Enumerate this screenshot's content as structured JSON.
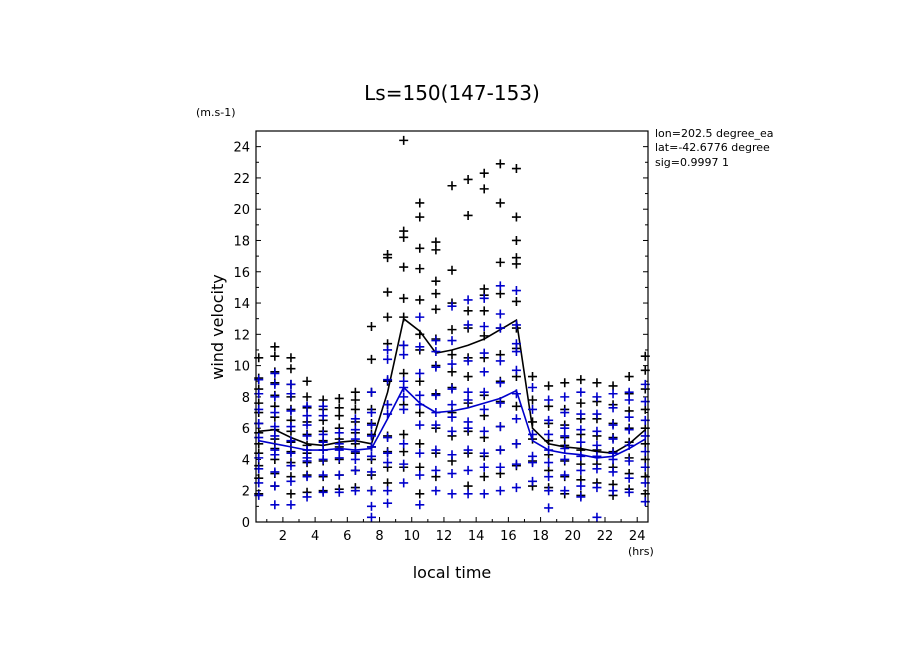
{
  "chart_data": {
    "type": "scatter",
    "title": "Ls=150(147-153)",
    "xlabel": "local time",
    "ylabel": "wind velocity",
    "x_unit": "(hrs)",
    "y_unit": "(m.s-1)",
    "xlim": [
      0.33,
      24.67
    ],
    "ylim": [
      0,
      25
    ],
    "xticks": [
      2,
      4,
      6,
      8,
      10,
      12,
      14,
      16,
      18,
      20,
      22,
      24
    ],
    "yticks": [
      0,
      2,
      4,
      6,
      8,
      10,
      12,
      14,
      16,
      18,
      20,
      22,
      24
    ],
    "annotations": [
      "lon=202.5 degree_ea",
      "lat=-42.6776 degree",
      "sig=0.9997 1"
    ],
    "colors": {
      "series1": "#000000",
      "series2": "#0000cc"
    },
    "series": [
      {
        "marker": "plus",
        "color": "#000000",
        "mean_line": {
          "x": [
            0.5,
            1.5,
            2.5,
            3.5,
            4.5,
            5.5,
            6.5,
            7.5,
            8.5,
            9.5,
            10.5,
            11.5,
            12.5,
            13.5,
            14.5,
            15.5,
            16.5,
            17.5,
            18.5,
            19.5,
            20.5,
            21.5,
            22.5,
            23.5,
            24.5
          ],
          "y": [
            5.8,
            5.9,
            5.4,
            5.0,
            4.9,
            5.1,
            5.2,
            5.0,
            8.3,
            13.0,
            12.2,
            10.8,
            11.0,
            11.3,
            11.7,
            12.3,
            12.9,
            6.0,
            5.0,
            4.8,
            4.7,
            4.5,
            4.4,
            5.0,
            5.9
          ]
        },
        "points": [
          [
            0.5,
            [
              1.8,
              2.8,
              3.6,
              4.4,
              5.0,
              5.7,
              6.3,
              7.0,
              7.6,
              8.5,
              9.2,
              10.5
            ]
          ],
          [
            1.5,
            [
              2.3,
              3.1,
              4.0,
              4.7,
              5.3,
              5.9,
              6.7,
              7.4,
              8.1,
              8.9,
              9.6,
              10.6,
              11.2
            ]
          ],
          [
            2.5,
            [
              1.8,
              2.9,
              3.8,
              4.5,
              5.1,
              5.8,
              6.5,
              7.2,
              8.0,
              8.8,
              9.8,
              10.5
            ]
          ],
          [
            3.5,
            [
              1.9,
              3.0,
              3.8,
              4.4,
              4.9,
              5.6,
              6.4,
              7.3,
              8.0,
              9.0
            ]
          ],
          [
            4.5,
            [
              2.0,
              2.9,
              3.9,
              4.6,
              5.2,
              5.8,
              6.5,
              7.2,
              7.8
            ]
          ],
          [
            5.5,
            [
              2.1,
              3.0,
              4.0,
              4.8,
              5.3,
              6.0,
              6.8,
              7.3,
              7.9
            ]
          ],
          [
            6.5,
            [
              2.2,
              3.3,
              4.4,
              5.0,
              5.7,
              6.4,
              7.2,
              7.8,
              8.3
            ]
          ],
          [
            7.5,
            [
              2.0,
              3.0,
              4.0,
              4.8,
              5.6,
              6.3,
              7.2,
              8.3,
              10.4,
              12.5
            ]
          ],
          [
            8.5,
            [
              2.5,
              3.5,
              4.5,
              5.5,
              7.5,
              9.0,
              11.4,
              13.1,
              14.7,
              16.9,
              17.1
            ]
          ],
          [
            9.5,
            [
              3.5,
              4.5,
              5.6,
              7.5,
              9.5,
              11.3,
              13.1,
              14.3,
              16.3,
              18.2,
              18.6,
              24.4
            ]
          ],
          [
            10.5,
            [
              1.8,
              3.5,
              5.0,
              7.0,
              9.0,
              11.0,
              12.0,
              14.2,
              16.2,
              17.5,
              19.5,
              20.4
            ]
          ],
          [
            11.5,
            [
              2.9,
              4.4,
              6.0,
              8.2,
              10.0,
              11.7,
              13.6,
              14.6,
              15.4,
              17.4,
              17.9
            ]
          ],
          [
            12.5,
            [
              3.9,
              5.5,
              7.0,
              8.6,
              9.6,
              10.7,
              12.3,
              14.0,
              16.1,
              21.5
            ]
          ],
          [
            13.5,
            [
              2.3,
              4.4,
              5.8,
              7.6,
              9.3,
              10.5,
              12.4,
              13.5,
              19.6,
              21.9
            ]
          ],
          [
            14.5,
            [
              2.9,
              4.2,
              5.4,
              6.8,
              8.1,
              10.5,
              11.9,
              13.5,
              14.5,
              14.9,
              21.3,
              22.3
            ]
          ],
          [
            15.5,
            [
              3.1,
              4.6,
              6.1,
              7.7,
              9.0,
              10.7,
              12.4,
              14.6,
              16.6,
              20.4,
              22.9
            ]
          ],
          [
            16.5,
            [
              3.6,
              5.0,
              7.4,
              9.3,
              11.1,
              12.4,
              14.1,
              16.5,
              16.9,
              18.0,
              19.5,
              22.6
            ]
          ],
          [
            17.5,
            [
              2.3,
              3.9,
              5.3,
              6.4,
              7.8,
              9.3
            ]
          ],
          [
            18.5,
            [
              2.2,
              3.3,
              4.3,
              5.2,
              6.3,
              7.4,
              8.7
            ]
          ],
          [
            19.5,
            [
              1.8,
              2.9,
              3.9,
              4.9,
              5.4,
              6.2,
              7.2,
              8.9
            ]
          ],
          [
            20.5,
            [
              1.7,
              2.7,
              3.7,
              4.6,
              5.6,
              6.6,
              7.6,
              9.1
            ]
          ],
          [
            21.5,
            [
              2.5,
              3.7,
              4.6,
              5.5,
              6.6,
              7.7,
              8.9
            ]
          ],
          [
            22.5,
            [
              1.7,
              2.4,
              3.5,
              4.5,
              5.4,
              6.3,
              7.5,
              8.7
            ]
          ],
          [
            23.5,
            [
              2.1,
              3.1,
              4.1,
              5.1,
              6.0,
              7.1,
              8.2,
              9.3
            ]
          ],
          [
            24.5,
            [
              1.8,
              2.9,
              4.0,
              5.0,
              6.0,
              7.2,
              8.5,
              9.7,
              10.6
            ]
          ]
        ]
      },
      {
        "marker": "plus",
        "color": "#0000cc",
        "mean_line": {
          "x": [
            0.5,
            1.5,
            2.5,
            3.5,
            4.5,
            5.5,
            6.5,
            7.5,
            8.5,
            9.5,
            10.5,
            11.5,
            12.5,
            13.5,
            14.5,
            15.5,
            16.5,
            17.5,
            18.5,
            19.5,
            20.5,
            21.5,
            22.5,
            23.5,
            24.5
          ],
          "y": [
            5.2,
            5.0,
            4.8,
            4.6,
            4.6,
            4.7,
            4.6,
            4.7,
            6.6,
            8.6,
            7.6,
            7.0,
            7.1,
            7.3,
            7.6,
            7.9,
            8.4,
            5.2,
            4.6,
            4.4,
            4.3,
            4.1,
            4.2,
            4.7,
            5.3
          ]
        },
        "points": [
          [
            0.5,
            [
              1.7,
              2.5,
              3.4,
              4.1,
              5.4,
              6.3,
              7.2,
              8.2,
              9.1
            ]
          ],
          [
            1.5,
            [
              1.1,
              2.3,
              3.2,
              4.3,
              4.6,
              5.5,
              6.1,
              7.0,
              8.0,
              8.8,
              9.5
            ]
          ],
          [
            2.5,
            [
              1.1,
              2.6,
              3.6,
              4.4,
              5.2,
              6.1,
              7.1,
              8.2,
              8.8
            ]
          ],
          [
            3.5,
            [
              1.6,
              2.9,
              3.9,
              4.1,
              4.6,
              5.5,
              6.2,
              6.8,
              7.4
            ]
          ],
          [
            4.5,
            [
              1.9,
              3.0,
              4.0,
              4.6,
              5.1,
              5.6,
              6.8,
              7.4
            ]
          ],
          [
            5.5,
            [
              1.9,
              3.0,
              4.1,
              4.6,
              5.0,
              5.7
            ]
          ],
          [
            6.5,
            [
              2.0,
              3.3,
              4.0,
              4.5,
              5.3,
              5.9,
              6.6
            ]
          ],
          [
            7.5,
            [
              0.3,
              1.0,
              2.0,
              3.2,
              4.2,
              4.8,
              5.5,
              6.2,
              7.0,
              8.3
            ]
          ],
          [
            8.5,
            [
              1.2,
              2.0,
              3.8,
              4.4,
              5.4,
              6.9,
              7.5,
              9.1,
              10.4,
              11.0
            ]
          ],
          [
            9.5,
            [
              2.5,
              3.7,
              5.0,
              7.2,
              8.0,
              8.6,
              9.0,
              10.7,
              11.3
            ]
          ],
          [
            10.5,
            [
              1.1,
              3.0,
              4.4,
              6.2,
              7.5,
              8.1,
              9.5,
              11.2,
              13.1
            ]
          ],
          [
            11.5,
            [
              2.0,
              3.3,
              4.6,
              6.2,
              7.0,
              8.1,
              9.9,
              10.9,
              11.6
            ]
          ],
          [
            12.5,
            [
              1.8,
              3.1,
              4.3,
              5.8,
              6.7,
              7.5,
              8.5,
              10.1,
              11.6,
              13.8
            ]
          ],
          [
            13.5,
            [
              1.8,
              3.3,
              4.6,
              6.0,
              6.4,
              7.8,
              8.3,
              10.3,
              12.6,
              14.2
            ]
          ],
          [
            14.5,
            [
              1.8,
              3.5,
              4.4,
              5.8,
              7.2,
              8.3,
              9.6,
              10.8,
              12.5,
              14.3
            ]
          ],
          [
            15.5,
            [
              2.0,
              3.5,
              4.6,
              6.1,
              7.6,
              8.9,
              10.3,
              12.4,
              13.3,
              15.1
            ]
          ],
          [
            16.5,
            [
              2.2,
              3.7,
              5.0,
              6.6,
              8.2,
              9.7,
              10.9,
              11.4,
              12.6,
              14.8
            ]
          ],
          [
            17.5,
            [
              2.6,
              3.8,
              4.2,
              5.6,
              7.2,
              8.6
            ]
          ],
          [
            18.5,
            [
              0.9,
              2.0,
              2.9,
              3.8,
              4.6,
              5.6,
              6.5,
              7.8
            ]
          ],
          [
            19.5,
            [
              2.0,
              3.0,
              4.0,
              4.7,
              5.5,
              6.0,
              7.0,
              8.0
            ]
          ],
          [
            20.5,
            [
              1.6,
              2.3,
              3.3,
              4.2,
              5.1,
              5.9,
              6.9,
              8.3
            ]
          ],
          [
            21.5,
            [
              0.3,
              2.2,
              3.4,
              4.2,
              4.9,
              5.8,
              6.9,
              8.0
            ]
          ],
          [
            22.5,
            [
              2.0,
              3.2,
              4.0,
              4.4,
              5.3,
              6.2,
              7.3,
              8.2
            ]
          ],
          [
            23.5,
            [
              1.9,
              2.8,
              3.9,
              4.9,
              5.9,
              6.7,
              7.8,
              8.3
            ]
          ],
          [
            24.5,
            [
              1.3,
              2.5,
              3.5,
              4.5,
              5.5,
              6.5,
              7.7,
              8.8
            ]
          ]
        ]
      }
    ]
  }
}
